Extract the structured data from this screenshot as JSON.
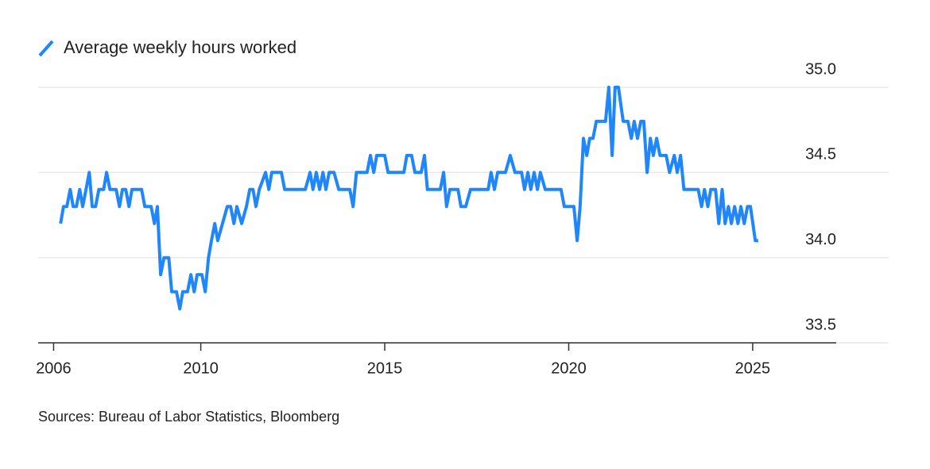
{
  "chart_data": {
    "type": "line",
    "source": "Sources: Bureau of Labor Statistics, Bloomberg",
    "series": [
      {
        "name": "Average weekly hours worked",
        "color": "#1f86fb",
        "x": [
          2006.19,
          2006.27,
          2006.36,
          2006.45,
          2006.53,
          2006.62,
          2006.71,
          2006.79,
          2006.88,
          2006.97,
          2007.05,
          2007.14,
          2007.23,
          2007.36,
          2007.44,
          2007.53,
          2007.7,
          2007.79,
          2007.87,
          2007.96,
          2008.05,
          2008.13,
          2008.39,
          2008.48,
          2008.65,
          2008.74,
          2008.82,
          2008.91,
          2009.0,
          2009.13,
          2009.21,
          2009.34,
          2009.43,
          2009.51,
          2009.64,
          2009.73,
          2009.82,
          2009.9,
          2010.03,
          2010.12,
          2010.21,
          2010.29,
          2010.38,
          2010.46,
          2010.59,
          2010.72,
          2010.81,
          2010.9,
          2010.98,
          2011.11,
          2011.24,
          2011.33,
          2011.42,
          2011.5,
          2011.59,
          2011.76,
          2011.85,
          2011.93,
          2012.19,
          2012.28,
          2012.84,
          2012.97,
          2013.05,
          2013.14,
          2013.23,
          2013.32,
          2013.4,
          2013.49,
          2013.62,
          2013.75,
          2014.05,
          2014.14,
          2014.23,
          2014.52,
          2014.61,
          2014.7,
          2014.78,
          2015.0,
          2015.09,
          2015.52,
          2015.6,
          2015.73,
          2015.82,
          2015.99,
          2016.08,
          2016.16,
          2016.51,
          2016.6,
          2016.68,
          2016.77,
          2016.99,
          2017.07,
          2017.2,
          2017.33,
          2017.81,
          2017.89,
          2017.98,
          2018.07,
          2018.28,
          2018.41,
          2018.54,
          2018.72,
          2018.8,
          2018.89,
          2018.97,
          2019.06,
          2019.15,
          2019.23,
          2019.36,
          2019.79,
          2019.88,
          2020.14,
          2020.23,
          2020.31,
          2020.4,
          2020.49,
          2020.57,
          2020.66,
          2020.75,
          2021.0,
          2021.09,
          2021.18,
          2021.26,
          2021.35,
          2021.48,
          2021.61,
          2021.7,
          2021.78,
          2021.87,
          2021.96,
          2022.04,
          2022.13,
          2022.22,
          2022.3,
          2022.39,
          2022.48,
          2022.65,
          2022.74,
          2022.87,
          2022.95,
          2023.04,
          2023.13,
          2023.52,
          2023.61,
          2023.69,
          2023.78,
          2023.86,
          2023.99,
          2024.08,
          2024.17,
          2024.25,
          2024.34,
          2024.42,
          2024.51,
          2024.6,
          2024.68,
          2024.77,
          2024.86,
          2024.94,
          2025.07,
          2025.15
        ],
        "values": [
          34.2,
          34.3,
          34.3,
          34.4,
          34.3,
          34.3,
          34.4,
          34.3,
          34.4,
          34.5,
          34.3,
          34.3,
          34.4,
          34.4,
          34.5,
          34.4,
          34.4,
          34.3,
          34.4,
          34.4,
          34.3,
          34.4,
          34.4,
          34.3,
          34.3,
          34.2,
          34.3,
          33.9,
          34.0,
          34.0,
          33.8,
          33.8,
          33.7,
          33.8,
          33.8,
          33.9,
          33.8,
          33.9,
          33.9,
          33.8,
          34.0,
          34.1,
          34.2,
          34.1,
          34.2,
          34.3,
          34.3,
          34.2,
          34.3,
          34.2,
          34.3,
          34.4,
          34.4,
          34.3,
          34.4,
          34.5,
          34.4,
          34.5,
          34.5,
          34.4,
          34.4,
          34.5,
          34.4,
          34.5,
          34.4,
          34.5,
          34.4,
          34.5,
          34.5,
          34.4,
          34.4,
          34.3,
          34.5,
          34.5,
          34.6,
          34.5,
          34.6,
          34.6,
          34.5,
          34.5,
          34.6,
          34.6,
          34.5,
          34.5,
          34.6,
          34.4,
          34.4,
          34.5,
          34.3,
          34.4,
          34.4,
          34.3,
          34.3,
          34.4,
          34.4,
          34.5,
          34.4,
          34.5,
          34.5,
          34.6,
          34.5,
          34.5,
          34.4,
          34.5,
          34.4,
          34.5,
          34.4,
          34.5,
          34.4,
          34.4,
          34.3,
          34.3,
          34.1,
          34.3,
          34.7,
          34.6,
          34.7,
          34.7,
          34.8,
          34.8,
          35.0,
          34.6,
          35.0,
          35.0,
          34.8,
          34.8,
          34.7,
          34.8,
          34.7,
          34.8,
          34.8,
          34.5,
          34.7,
          34.6,
          34.7,
          34.6,
          34.6,
          34.5,
          34.6,
          34.5,
          34.6,
          34.4,
          34.4,
          34.3,
          34.4,
          34.3,
          34.4,
          34.4,
          34.2,
          34.4,
          34.2,
          34.3,
          34.2,
          34.3,
          34.2,
          34.3,
          34.2,
          34.3,
          34.3,
          34.1,
          34.1
        ]
      }
    ],
    "xlim": [
      2005.58,
      2027.27
    ],
    "xticks": [
      2006,
      2010,
      2015,
      2020,
      2025
    ],
    "ylim": [
      33.5,
      35.0
    ],
    "yticks": [
      {
        "value": 33.5,
        "label": "33.5"
      },
      {
        "value": 34.0,
        "label": "34.0"
      },
      {
        "value": 34.5,
        "label": "34.5"
      },
      {
        "value": 35.0,
        "label": "35.0"
      }
    ],
    "grid": true
  }
}
